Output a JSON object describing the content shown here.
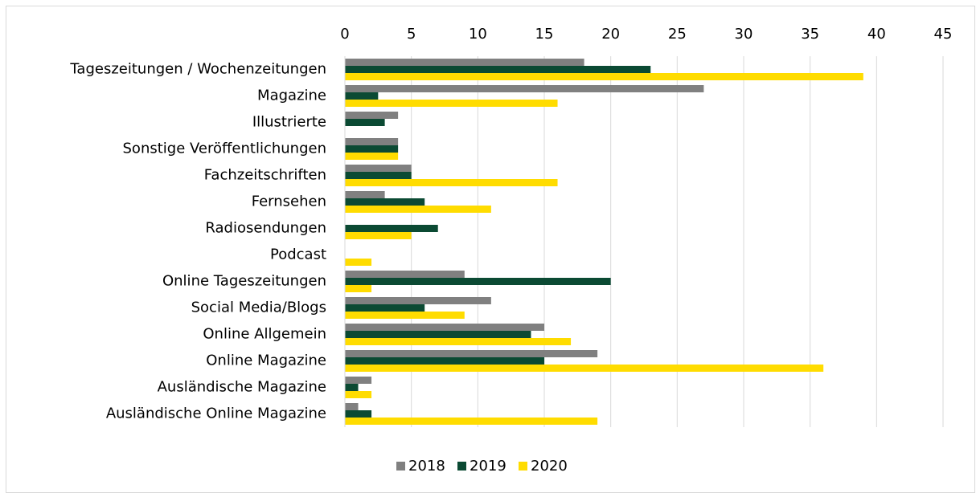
{
  "chart_data": {
    "type": "hbar",
    "categories": [
      "Tageszeitungen / Wochenzeitungen",
      "Magazine",
      "Illustrierte",
      "Sonstige Veröffentlichungen",
      "Fachzeitschriften",
      "Fernsehen",
      "Radiosendungen",
      "Podcast",
      "Online Tageszeitungen",
      "Social Media/Blogs",
      "Online Allgemein",
      "Online Magazine",
      "Ausländische Magazine",
      "Ausländische Online Magazine"
    ],
    "series": [
      {
        "name": "2018",
        "color": "#808080",
        "values": [
          18,
          27,
          4,
          4,
          5,
          3,
          0,
          0,
          9,
          11,
          15,
          19,
          2,
          1
        ]
      },
      {
        "name": "2019",
        "color": "#0b4a33",
        "values": [
          23,
          2.5,
          3,
          4,
          5,
          6,
          7,
          0,
          20,
          6,
          14,
          15,
          1,
          2
        ]
      },
      {
        "name": "2020",
        "color": "#ffdc00",
        "values": [
          39,
          16,
          0,
          4,
          16,
          11,
          5,
          2,
          2,
          9,
          17,
          36,
          2,
          19
        ]
      }
    ],
    "xlim": [
      0,
      45
    ],
    "xticks": [
      0,
      5,
      10,
      15,
      20,
      25,
      30,
      35,
      40,
      45
    ],
    "grid": true,
    "legend": "bottom"
  }
}
